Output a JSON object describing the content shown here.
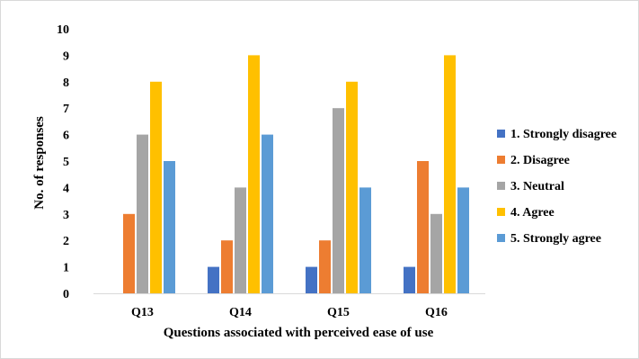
{
  "chart_data": {
    "type": "bar",
    "title": "",
    "xlabel": "Questions associated with perceived ease of use",
    "ylabel": "No. of responses",
    "ylim": [
      0,
      10
    ],
    "yticks": [
      0,
      1,
      2,
      3,
      4,
      5,
      6,
      7,
      8,
      9,
      10
    ],
    "grid": false,
    "legend_position": "right",
    "categories": [
      "Q13",
      "Q14",
      "Q15",
      "Q16"
    ],
    "series": [
      {
        "name": "1. Strongly disagree",
        "color": "#4472C4",
        "values": [
          0,
          1,
          1,
          1
        ]
      },
      {
        "name": "2. Disagree",
        "color": "#ED7D31",
        "values": [
          3,
          2,
          2,
          5
        ]
      },
      {
        "name": "3. Neutral",
        "color": "#A5A5A5",
        "values": [
          6,
          4,
          7,
          3
        ]
      },
      {
        "name": "4. Agree",
        "color": "#FFC000",
        "values": [
          8,
          9,
          8,
          9
        ]
      },
      {
        "name": "5. Strongly agree",
        "color": "#5B9BD5",
        "values": [
          5,
          6,
          4,
          4
        ]
      }
    ]
  }
}
